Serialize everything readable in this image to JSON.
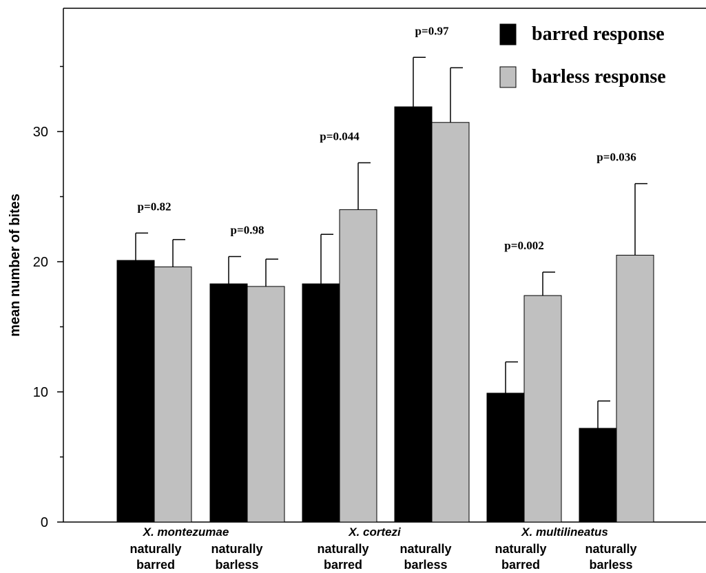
{
  "chart_data": {
    "type": "bar",
    "title": "",
    "xlabel": "",
    "ylabel": "mean number of bites",
    "ylim": [
      0,
      40
    ],
    "yticks": [
      0,
      10,
      20,
      30
    ],
    "grid": false,
    "legend_position": "top-right",
    "colors": {
      "barred": "#000000",
      "barless": "#c0c0c0"
    },
    "species": [
      "X. montezumae",
      "X. cortezi",
      "X. multilineatus"
    ],
    "categories": [
      {
        "line1": "naturally",
        "line2": "barred"
      },
      {
        "line1": "naturally",
        "line2": "barless"
      },
      {
        "line1": "naturally",
        "line2": "barred"
      },
      {
        "line1": "naturally",
        "line2": "barless"
      },
      {
        "line1": "naturally",
        "line2": "barred"
      },
      {
        "line1": "naturally",
        "line2": "barless"
      }
    ],
    "series": [
      {
        "name": "barred response",
        "values": [
          20.1,
          18.3,
          18.3,
          31.9,
          9.9,
          7.2
        ],
        "errors": [
          2.1,
          2.1,
          3.8,
          3.8,
          2.4,
          2.1
        ]
      },
      {
        "name": "barless response",
        "values": [
          19.6,
          18.1,
          24.0,
          30.7,
          17.4,
          20.5
        ],
        "errors": [
          2.1,
          2.1,
          3.6,
          4.2,
          1.8,
          5.5
        ]
      }
    ],
    "p_values": [
      "p=0.82",
      "p=0.98",
      "p=0.044",
      "p=0.97",
      "p=0.002",
      "p=0.036"
    ]
  }
}
